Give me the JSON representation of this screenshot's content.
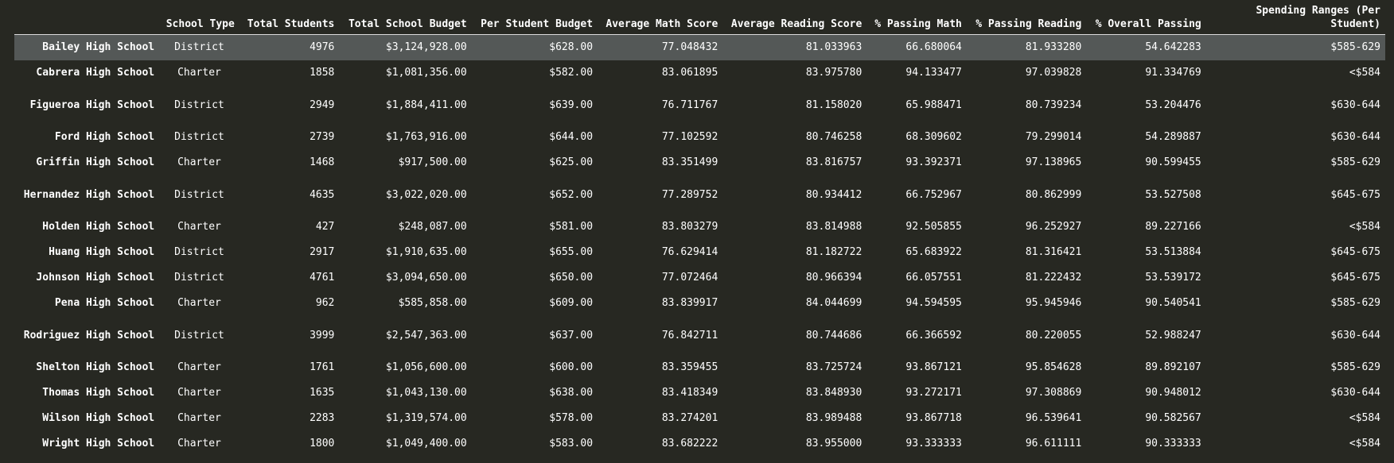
{
  "table": {
    "headers": [
      "",
      "School Type",
      "Total Students",
      "Total School Budget",
      "Per Student Budget",
      "Average Math Score",
      "Average Reading Score",
      "% Passing Math",
      "% Passing Reading",
      "% Overall Passing",
      "Spending Ranges (Per Student)"
    ],
    "rows": [
      [
        "Bailey High School",
        "District",
        "4976",
        "$3,124,928.00",
        "$628.00",
        "77.048432",
        "81.033963",
        "66.680064",
        "81.933280",
        "54.642283",
        "$585-629"
      ],
      [
        "Cabrera High School",
        "Charter",
        "1858",
        "$1,081,356.00",
        "$582.00",
        "83.061895",
        "83.975780",
        "94.133477",
        "97.039828",
        "91.334769",
        "<$584"
      ],
      [
        "Figueroa High School",
        "District",
        "2949",
        "$1,884,411.00",
        "$639.00",
        "76.711767",
        "81.158020",
        "65.988471",
        "80.739234",
        "53.204476",
        "$630-644"
      ],
      [
        "Ford High School",
        "District",
        "2739",
        "$1,763,916.00",
        "$644.00",
        "77.102592",
        "80.746258",
        "68.309602",
        "79.299014",
        "54.289887",
        "$630-644"
      ],
      [
        "Griffin High School",
        "Charter",
        "1468",
        "$917,500.00",
        "$625.00",
        "83.351499",
        "83.816757",
        "93.392371",
        "97.138965",
        "90.599455",
        "$585-629"
      ],
      [
        "Hernandez High School",
        "District",
        "4635",
        "$3,022,020.00",
        "$652.00",
        "77.289752",
        "80.934412",
        "66.752967",
        "80.862999",
        "53.527508",
        "$645-675"
      ],
      [
        "Holden High School",
        "Charter",
        "427",
        "$248,087.00",
        "$581.00",
        "83.803279",
        "83.814988",
        "92.505855",
        "96.252927",
        "89.227166",
        "<$584"
      ],
      [
        "Huang High School",
        "District",
        "2917",
        "$1,910,635.00",
        "$655.00",
        "76.629414",
        "81.182722",
        "65.683922",
        "81.316421",
        "53.513884",
        "$645-675"
      ],
      [
        "Johnson High School",
        "District",
        "4761",
        "$3,094,650.00",
        "$650.00",
        "77.072464",
        "80.966394",
        "66.057551",
        "81.222432",
        "53.539172",
        "$645-675"
      ],
      [
        "Pena High School",
        "Charter",
        "962",
        "$585,858.00",
        "$609.00",
        "83.839917",
        "84.044699",
        "94.594595",
        "95.945946",
        "90.540541",
        "$585-629"
      ],
      [
        "Rodriguez High School",
        "District",
        "3999",
        "$2,547,363.00",
        "$637.00",
        "76.842711",
        "80.744686",
        "66.366592",
        "80.220055",
        "52.988247",
        "$630-644"
      ],
      [
        "Shelton High School",
        "Charter",
        "1761",
        "$1,056,600.00",
        "$600.00",
        "83.359455",
        "83.725724",
        "93.867121",
        "95.854628",
        "89.892107",
        "$585-629"
      ],
      [
        "Thomas High School",
        "Charter",
        "1635",
        "$1,043,130.00",
        "$638.00",
        "83.418349",
        "83.848930",
        "93.272171",
        "97.308869",
        "90.948012",
        "$630-644"
      ],
      [
        "Wilson High School",
        "Charter",
        "2283",
        "$1,319,574.00",
        "$578.00",
        "83.274201",
        "83.989488",
        "93.867718",
        "96.539641",
        "90.582567",
        "<$584"
      ],
      [
        "Wright High School",
        "Charter",
        "1800",
        "$1,049,400.00",
        "$583.00",
        "83.682222",
        "83.955000",
        "93.333333",
        "96.611111",
        "90.333333",
        "<$584"
      ]
    ]
  }
}
